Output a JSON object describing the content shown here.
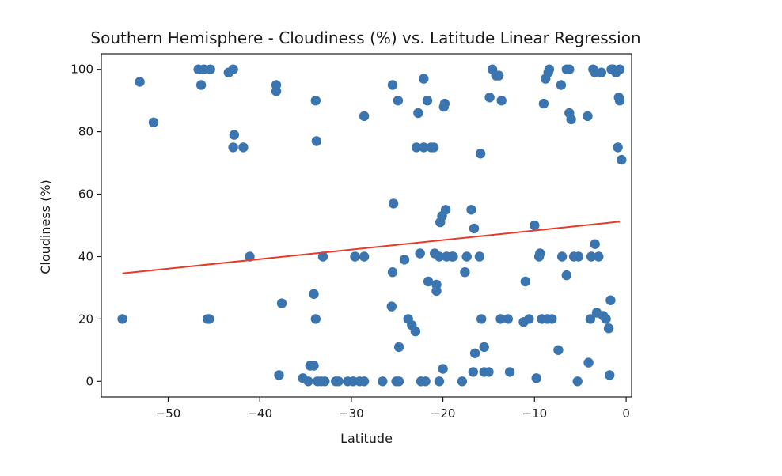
{
  "chart_data": {
    "type": "scatter",
    "title": "Southern Hemisphere - Cloudiness (%) vs. Latitude Linear Regression",
    "xlabel": "Latitude",
    "ylabel": "Cloudiness (%)",
    "xlim": [
      -57.3,
      0.6
    ],
    "ylim": [
      -5,
      105
    ],
    "xticks": [
      -50,
      -40,
      -30,
      -20,
      -10,
      0
    ],
    "xtick_labels": [
      "−50",
      "−40",
      "−30",
      "−20",
      "−10",
      "0"
    ],
    "yticks": [
      0,
      20,
      40,
      60,
      80,
      100
    ],
    "ytick_labels": [
      "0",
      "20",
      "40",
      "60",
      "80",
      "100"
    ],
    "grid": false,
    "colors": {
      "points": "#3a75b0",
      "regression": "#e8392a",
      "text": "#1a1a1a",
      "axes": "#1a1a1a"
    },
    "regression_line": {
      "x": [
        -55.0,
        -0.7
      ],
      "y": [
        34.6,
        51.2
      ]
    },
    "points": [
      [
        -55.0,
        20
      ],
      [
        -53.1,
        96
      ],
      [
        -51.6,
        83
      ],
      [
        -46.7,
        100
      ],
      [
        -46.4,
        95
      ],
      [
        -46.1,
        100
      ],
      [
        -45.7,
        20
      ],
      [
        -45.5,
        20
      ],
      [
        -45.4,
        100
      ],
      [
        -43.4,
        99
      ],
      [
        -42.9,
        100
      ],
      [
        -42.8,
        79
      ],
      [
        -42.9,
        75
      ],
      [
        -41.8,
        75
      ],
      [
        -41.1,
        40
      ],
      [
        -38.2,
        95
      ],
      [
        -38.2,
        93
      ],
      [
        -37.9,
        2
      ],
      [
        -37.6,
        25
      ],
      [
        -35.3,
        1
      ],
      [
        -34.7,
        0
      ],
      [
        -34.5,
        5
      ],
      [
        -34.1,
        5
      ],
      [
        -34.1,
        28
      ],
      [
        -33.9,
        20
      ],
      [
        -33.9,
        90
      ],
      [
        -33.8,
        77
      ],
      [
        -33.7,
        0
      ],
      [
        -33.3,
        0
      ],
      [
        -33.1,
        40
      ],
      [
        -32.9,
        0
      ],
      [
        -31.7,
        0
      ],
      [
        -31.4,
        0
      ],
      [
        -30.4,
        0
      ],
      [
        -29.8,
        0
      ],
      [
        -29.6,
        40
      ],
      [
        -29.1,
        0
      ],
      [
        -28.6,
        0
      ],
      [
        -28.6,
        40
      ],
      [
        -28.6,
        85
      ],
      [
        -26.6,
        0
      ],
      [
        -25.5,
        95
      ],
      [
        -25.4,
        57
      ],
      [
        -25.5,
        35
      ],
      [
        -25.6,
        24
      ],
      [
        -25.1,
        0
      ],
      [
        -24.9,
        90
      ],
      [
        -24.8,
        11
      ],
      [
        -24.8,
        0
      ],
      [
        -24.2,
        39
      ],
      [
        -23.8,
        20
      ],
      [
        -23.4,
        18
      ],
      [
        -23.0,
        16
      ],
      [
        -22.9,
        75
      ],
      [
        -22.7,
        86
      ],
      [
        -22.5,
        41
      ],
      [
        -22.4,
        0
      ],
      [
        -22.1,
        97
      ],
      [
        -22.1,
        75
      ],
      [
        -21.9,
        0
      ],
      [
        -21.7,
        90
      ],
      [
        -21.6,
        32
      ],
      [
        -21.3,
        75
      ],
      [
        -21.0,
        75
      ],
      [
        -20.9,
        41
      ],
      [
        -20.7,
        31
      ],
      [
        -20.7,
        29
      ],
      [
        -20.4,
        40
      ],
      [
        -20.4,
        0
      ],
      [
        -20.3,
        51
      ],
      [
        -20.1,
        53
      ],
      [
        -20.0,
        4
      ],
      [
        -19.9,
        88
      ],
      [
        -19.8,
        89
      ],
      [
        -19.7,
        55
      ],
      [
        -19.6,
        40
      ],
      [
        -19.0,
        40
      ],
      [
        -18.9,
        40
      ],
      [
        -17.9,
        0
      ],
      [
        -17.6,
        35
      ],
      [
        -17.4,
        40
      ],
      [
        -16.9,
        55
      ],
      [
        -16.7,
        3
      ],
      [
        -16.6,
        49
      ],
      [
        -16.5,
        9
      ],
      [
        -16.0,
        40
      ],
      [
        -15.9,
        73
      ],
      [
        -15.8,
        20
      ],
      [
        -15.5,
        11
      ],
      [
        -15.5,
        3
      ],
      [
        -15.0,
        3
      ],
      [
        -14.9,
        91
      ],
      [
        -14.6,
        100
      ],
      [
        -14.2,
        98
      ],
      [
        -13.9,
        98
      ],
      [
        -13.7,
        20
      ],
      [
        -13.6,
        90
      ],
      [
        -12.9,
        20
      ],
      [
        -12.7,
        3
      ],
      [
        -11.2,
        19
      ],
      [
        -11.0,
        32
      ],
      [
        -10.6,
        20
      ],
      [
        -10.0,
        50
      ],
      [
        -9.8,
        1
      ],
      [
        -9.5,
        40
      ],
      [
        -9.4,
        41
      ],
      [
        -9.2,
        20
      ],
      [
        -9.0,
        89
      ],
      [
        -8.8,
        97
      ],
      [
        -8.6,
        20
      ],
      [
        -8.5,
        99
      ],
      [
        -8.4,
        100
      ],
      [
        -8.1,
        20
      ],
      [
        -7.4,
        10
      ],
      [
        -7.1,
        95
      ],
      [
        -7.0,
        40
      ],
      [
        -6.5,
        34
      ],
      [
        -6.5,
        100
      ],
      [
        -6.2,
        100
      ],
      [
        -6.2,
        86
      ],
      [
        -6.0,
        84
      ],
      [
        -5.7,
        40
      ],
      [
        -5.3,
        0
      ],
      [
        -5.2,
        40
      ],
      [
        -4.2,
        85
      ],
      [
        -4.1,
        6
      ],
      [
        -3.9,
        20
      ],
      [
        -3.8,
        40
      ],
      [
        -3.6,
        100
      ],
      [
        -3.4,
        44
      ],
      [
        -3.4,
        99
      ],
      [
        -3.2,
        22
      ],
      [
        -3.0,
        40
      ],
      [
        -2.7,
        99
      ],
      [
        -2.5,
        21
      ],
      [
        -2.2,
        20
      ],
      [
        -1.9,
        17
      ],
      [
        -1.8,
        2
      ],
      [
        -1.7,
        26
      ],
      [
        -1.6,
        100
      ],
      [
        -1.4,
        100
      ],
      [
        -1.1,
        99
      ],
      [
        -0.9,
        75
      ],
      [
        -0.8,
        91
      ],
      [
        -0.7,
        90
      ],
      [
        -0.7,
        100
      ],
      [
        -0.5,
        71
      ]
    ]
  }
}
